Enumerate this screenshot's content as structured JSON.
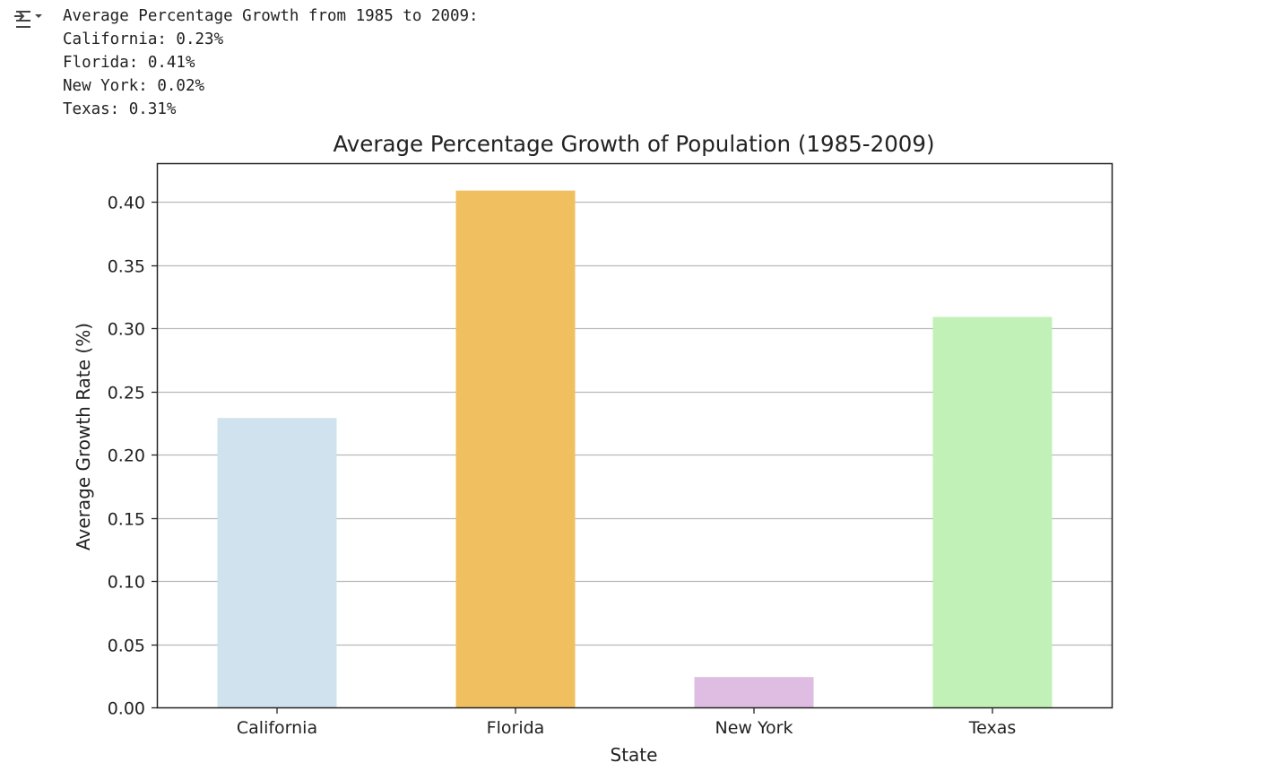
{
  "output_icon": "output-collapse-icon",
  "stdout": {
    "heading": "Average Percentage Growth from 1985 to 2009:",
    "lines": [
      "California: 0.23%",
      "Florida: 0.41%",
      "New York: 0.02%",
      "Texas: 0.31%"
    ]
  },
  "chart_data": {
    "type": "bar",
    "title": "Average Percentage Growth of Population (1985-2009)",
    "xlabel": "State",
    "ylabel": "Average Growth Rate (%)",
    "categories": [
      "California",
      "Florida",
      "New York",
      "Texas"
    ],
    "values": [
      0.229,
      0.409,
      0.024,
      0.309
    ],
    "colors": [
      "#cfe2ed",
      "#f0bf60",
      "#dfbde3",
      "#c1f1b6"
    ],
    "ylim": [
      0,
      0.43
    ],
    "yticks": [
      0.0,
      0.05,
      0.1,
      0.15,
      0.2,
      0.25,
      0.3,
      0.35,
      0.4
    ],
    "ytick_labels": [
      "0.00",
      "0.05",
      "0.10",
      "0.15",
      "0.20",
      "0.25",
      "0.30",
      "0.35",
      "0.40"
    ],
    "grid": "horizontal",
    "grid_color": "#b8b8b8"
  }
}
